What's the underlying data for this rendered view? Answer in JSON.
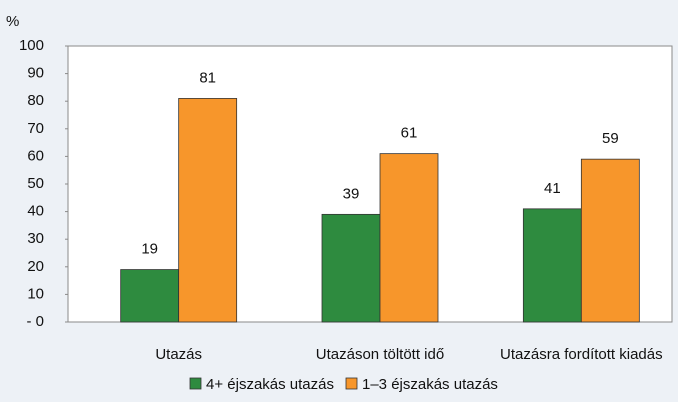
{
  "chart_data": {
    "type": "bar",
    "y_label": "%",
    "categories": [
      "Utazás",
      "Utazáson töltött idő",
      "Utazásra fordított kiadás"
    ],
    "series": [
      {
        "name": "4+ éjszakás utazás",
        "color": "#2e8b3f",
        "values": [
          19,
          39,
          41
        ]
      },
      {
        "name": "1–3 éjszakás utazás",
        "color": "#f7962b",
        "values": [
          81,
          61,
          59
        ]
      }
    ],
    "ylim": [
      0,
      100
    ],
    "yticks": [
      {
        "value": 0,
        "label": "- 0"
      },
      10,
      20,
      30,
      40,
      50,
      60,
      70,
      80,
      90,
      100
    ],
    "grid": false,
    "legend": "bottom"
  }
}
